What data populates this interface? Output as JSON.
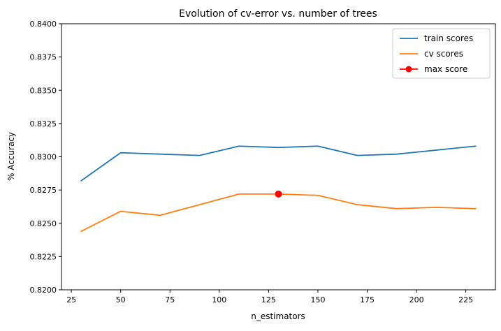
{
  "chart_data": {
    "type": "line",
    "title": "Evolution of cv-error vs. number of trees",
    "xlabel": "n_estimators",
    "ylabel": "% Accuracy",
    "xlim": [
      20,
      240
    ],
    "ylim": [
      0.82,
      0.84
    ],
    "xticks": [
      25,
      50,
      75,
      100,
      125,
      150,
      175,
      200,
      225
    ],
    "yticks": [
      0.82,
      0.8225,
      0.825,
      0.8275,
      0.83,
      0.8325,
      0.835,
      0.8375,
      0.84
    ],
    "grid": false,
    "legend_position": "top-right",
    "series": [
      {
        "name": "train scores",
        "color": "#1f77b4",
        "x": [
          30,
          50,
          70,
          90,
          110,
          130,
          150,
          170,
          190,
          210,
          230
        ],
        "values": [
          0.8282,
          0.8303,
          0.8302,
          0.8301,
          0.8308,
          0.8307,
          0.8308,
          0.8301,
          0.8302,
          0.8305,
          0.8308
        ]
      },
      {
        "name": "cv scores",
        "color": "#ff7f0e",
        "x": [
          30,
          50,
          70,
          90,
          110,
          130,
          150,
          170,
          190,
          210,
          230
        ],
        "values": [
          0.8244,
          0.8259,
          0.8256,
          0.8264,
          0.8272,
          0.8272,
          0.8271,
          0.8264,
          0.8261,
          0.8262,
          0.8261
        ]
      },
      {
        "name": "max score",
        "color": "#ff0000",
        "marker": "circle",
        "x": [
          130
        ],
        "values": [
          0.8272
        ]
      }
    ]
  }
}
